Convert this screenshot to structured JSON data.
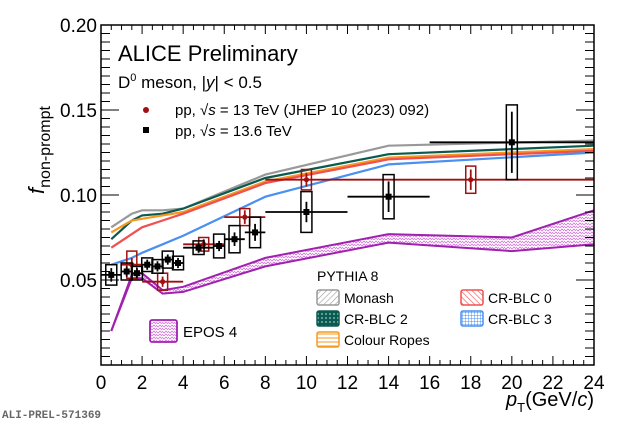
{
  "chart_data": {
    "type": "scatter",
    "title": "ALICE Preliminary",
    "subtitle": "D0 meson, |y| < 0.5",
    "subtitle_parts": {
      "D": "D",
      "sup": "0",
      "rest": " meson, |",
      "y": "y",
      "end": "| < 0.5"
    },
    "xlabel": "pT(GeV/c)",
    "xlabel_parts": {
      "p": "p",
      "sub": "T",
      "rest": "(GeV/",
      "c": "c",
      "close": ")"
    },
    "ylabel": "fnon-prompt",
    "ylabel_parts": {
      "f": "f",
      "sub": "non-prompt"
    },
    "xlim": [
      0,
      24
    ],
    "ylim": [
      0,
      0.2
    ],
    "xticks": [
      "0",
      "2",
      "4",
      "6",
      "8",
      "10",
      "12",
      "14",
      "16",
      "18",
      "20",
      "22",
      "24"
    ],
    "xtick_values": [
      0,
      2,
      4,
      6,
      8,
      10,
      12,
      14,
      16,
      18,
      20,
      22,
      24
    ],
    "yticks": [
      "0.05",
      "0.10",
      "0.15",
      "0.20"
    ],
    "ytick_values": [
      0.05,
      0.1,
      0.15,
      0.2
    ],
    "legend_data": [
      {
        "label": "pp, √s = 13 TeV (JHEP 10 (2023) 092)",
        "pre": "pp, ",
        "sqrt": "√",
        "s": "s",
        "post": " = 13 TeV (JHEP 10 (2023) 092)",
        "marker": "circle",
        "color": "#a01010"
      },
      {
        "label": "pp, √s = 13.6 TeV",
        "pre": "pp, ",
        "sqrt": "√",
        "s": "s",
        "post": " = 13.6 TeV",
        "marker": "square",
        "color": "#000000"
      }
    ],
    "legend_models_title": "PYTHIA 8",
    "legend_models": [
      {
        "label": "Monash",
        "color": "#999999"
      },
      {
        "label": "CR-BLC 0",
        "color": "#f05050"
      },
      {
        "label": "CR-BLC 2",
        "color": "#0a5a50"
      },
      {
        "label": "CR-BLC 3",
        "color": "#4a90f0"
      },
      {
        "label": "Colour Ropes",
        "color": "#f59a20"
      }
    ],
    "legend_epos": {
      "label": "EPOS 4",
      "color": "#a020b0"
    },
    "series": [
      {
        "name": "pp, √s = 13.6 TeV",
        "color": "#000000",
        "points": [
          {
            "x": 0.5,
            "y": 0.053,
            "xerr": 0.5,
            "stat": 0.004,
            "syst": 0.006
          },
          {
            "x": 1.25,
            "y": 0.055,
            "xerr": 0.25,
            "stat": 0.003,
            "syst": 0.005
          },
          {
            "x": 1.75,
            "y": 0.054,
            "xerr": 0.25,
            "stat": 0.003,
            "syst": 0.004
          },
          {
            "x": 2.25,
            "y": 0.059,
            "xerr": 0.25,
            "stat": 0.003,
            "syst": 0.004
          },
          {
            "x": 2.75,
            "y": 0.058,
            "xerr": 0.25,
            "stat": 0.003,
            "syst": 0.004
          },
          {
            "x": 3.25,
            "y": 0.062,
            "xerr": 0.25,
            "stat": 0.003,
            "syst": 0.005
          },
          {
            "x": 3.75,
            "y": 0.06,
            "xerr": 0.25,
            "stat": 0.003,
            "syst": 0.004
          },
          {
            "x": 4.75,
            "y": 0.069,
            "xerr": 0.75,
            "stat": 0.003,
            "syst": 0.004
          },
          {
            "x": 5.75,
            "y": 0.07,
            "xerr": 0.25,
            "stat": 0.003,
            "syst": 0.007
          },
          {
            "x": 6.5,
            "y": 0.074,
            "xerr": 0.5,
            "stat": 0.004,
            "syst": 0.008
          },
          {
            "x": 7.5,
            "y": 0.078,
            "xerr": 0.5,
            "stat": 0.005,
            "syst": 0.009
          },
          {
            "x": 10,
            "y": 0.09,
            "xerr": 2,
            "stat": 0.006,
            "syst": 0.012
          },
          {
            "x": 14,
            "y": 0.099,
            "xerr": 2,
            "stat": 0.009,
            "syst": 0.013
          },
          {
            "x": 20,
            "y": 0.131,
            "xerr": 4,
            "stat": 0.018,
            "syst": 0.022
          }
        ]
      },
      {
        "name": "pp, √s = 13 TeV (JHEP 10 (2023) 092)",
        "color": "#a01010",
        "points": [
          {
            "x": 1.5,
            "y": 0.059,
            "xerr": 0.5,
            "stat": 0.004,
            "syst": 0.008
          },
          {
            "x": 3.0,
            "y": 0.049,
            "xerr": 1,
            "stat": 0.003,
            "syst": 0.005
          },
          {
            "x": 5.0,
            "y": 0.071,
            "xerr": 1,
            "stat": 0.003,
            "syst": 0.004
          },
          {
            "x": 7.0,
            "y": 0.087,
            "xerr": 1,
            "stat": 0.004,
            "syst": 0.005
          },
          {
            "x": 10,
            "y": 0.109,
            "xerr": 2,
            "stat": 0.004,
            "syst": 0.006
          },
          {
            "x": 18,
            "y": 0.109,
            "xerr": 6,
            "stat": 0.006,
            "syst": 0.008
          }
        ]
      }
    ],
    "models": [
      {
        "name": "Monash",
        "color": "#999999",
        "x": [
          0.5,
          1.5,
          2,
          3,
          4,
          8,
          14,
          24
        ],
        "y": [
          0.081,
          0.089,
          0.091,
          0.091,
          0.092,
          0.112,
          0.129,
          0.132
        ]
      },
      {
        "name": "CR-BLC 2",
        "color": "#0a5a50",
        "x": [
          0.5,
          1.5,
          2,
          3,
          4,
          8,
          14,
          24
        ],
        "y": [
          0.074,
          0.085,
          0.088,
          0.089,
          0.092,
          0.11,
          0.124,
          0.129
        ]
      },
      {
        "name": "Colour Ropes",
        "color": "#f59a20",
        "x": [
          0.5,
          1.5,
          2,
          3,
          4,
          8,
          14,
          24
        ],
        "y": [
          0.078,
          0.085,
          0.086,
          0.088,
          0.09,
          0.108,
          0.122,
          0.127
        ]
      },
      {
        "name": "CR-BLC 0",
        "color": "#f05050",
        "x": [
          0.5,
          1.5,
          2,
          3,
          4,
          8,
          14,
          24
        ],
        "y": [
          0.069,
          0.077,
          0.081,
          0.085,
          0.089,
          0.107,
          0.121,
          0.126
        ]
      },
      {
        "name": "CR-BLC 3",
        "color": "#4a90f0",
        "x": [
          0.5,
          1.5,
          2,
          3,
          4,
          8,
          14,
          24
        ],
        "y": [
          0.059,
          0.063,
          0.066,
          0.071,
          0.076,
          0.099,
          0.118,
          0.125
        ]
      },
      {
        "name": "EPOS 4",
        "color": "#a020b0",
        "band": true,
        "x": [
          0.5,
          1.5,
          2,
          3,
          4,
          8,
          14,
          20,
          24
        ],
        "ylow": [
          0.02,
          0.051,
          0.051,
          0.042,
          0.043,
          0.058,
          0.072,
          0.067,
          0.071
        ],
        "yhigh": [
          0.02,
          0.053,
          0.054,
          0.044,
          0.046,
          0.063,
          0.077,
          0.075,
          0.091
        ]
      }
    ]
  },
  "footer": "ALI-PREL-571369"
}
